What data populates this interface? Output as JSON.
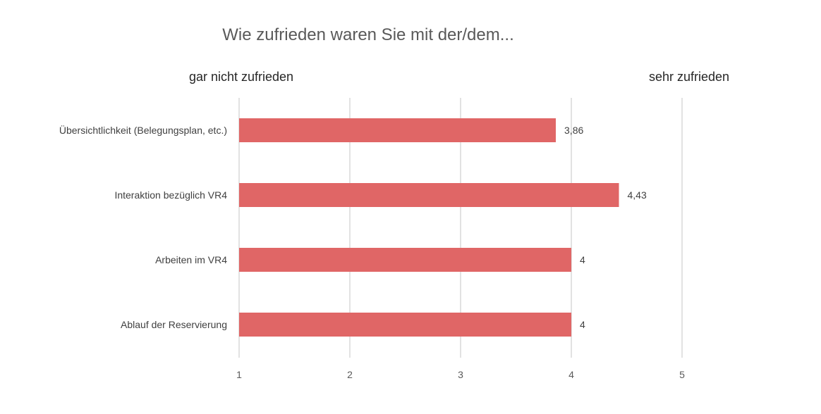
{
  "chart_data": {
    "type": "bar",
    "orientation": "horizontal",
    "title": "Wie zufrieden waren Sie mit der/dem...",
    "scale_low_label": "gar nicht zufrieden",
    "scale_high_label": "sehr zufrieden",
    "categories": [
      "Übersichtlichkeit (Belegungsplan, etc.)",
      "Interaktion bezüglich VR4",
      "Arbeiten im VR4",
      "Ablauf der Reservierung"
    ],
    "values": [
      3.86,
      4.43,
      4,
      4
    ],
    "value_labels": [
      "3,86",
      "4,43",
      "4",
      "4"
    ],
    "xlim": [
      1,
      5
    ],
    "xticks": [
      1,
      2,
      3,
      4,
      5
    ],
    "xtick_labels": [
      "1",
      "2",
      "3",
      "4",
      "5"
    ],
    "grid": "vertical",
    "colors": {
      "bar": "#e06666",
      "grid": "#d9d9d9",
      "text": "#404040",
      "title": "#595959",
      "background": "#ffffff"
    }
  }
}
